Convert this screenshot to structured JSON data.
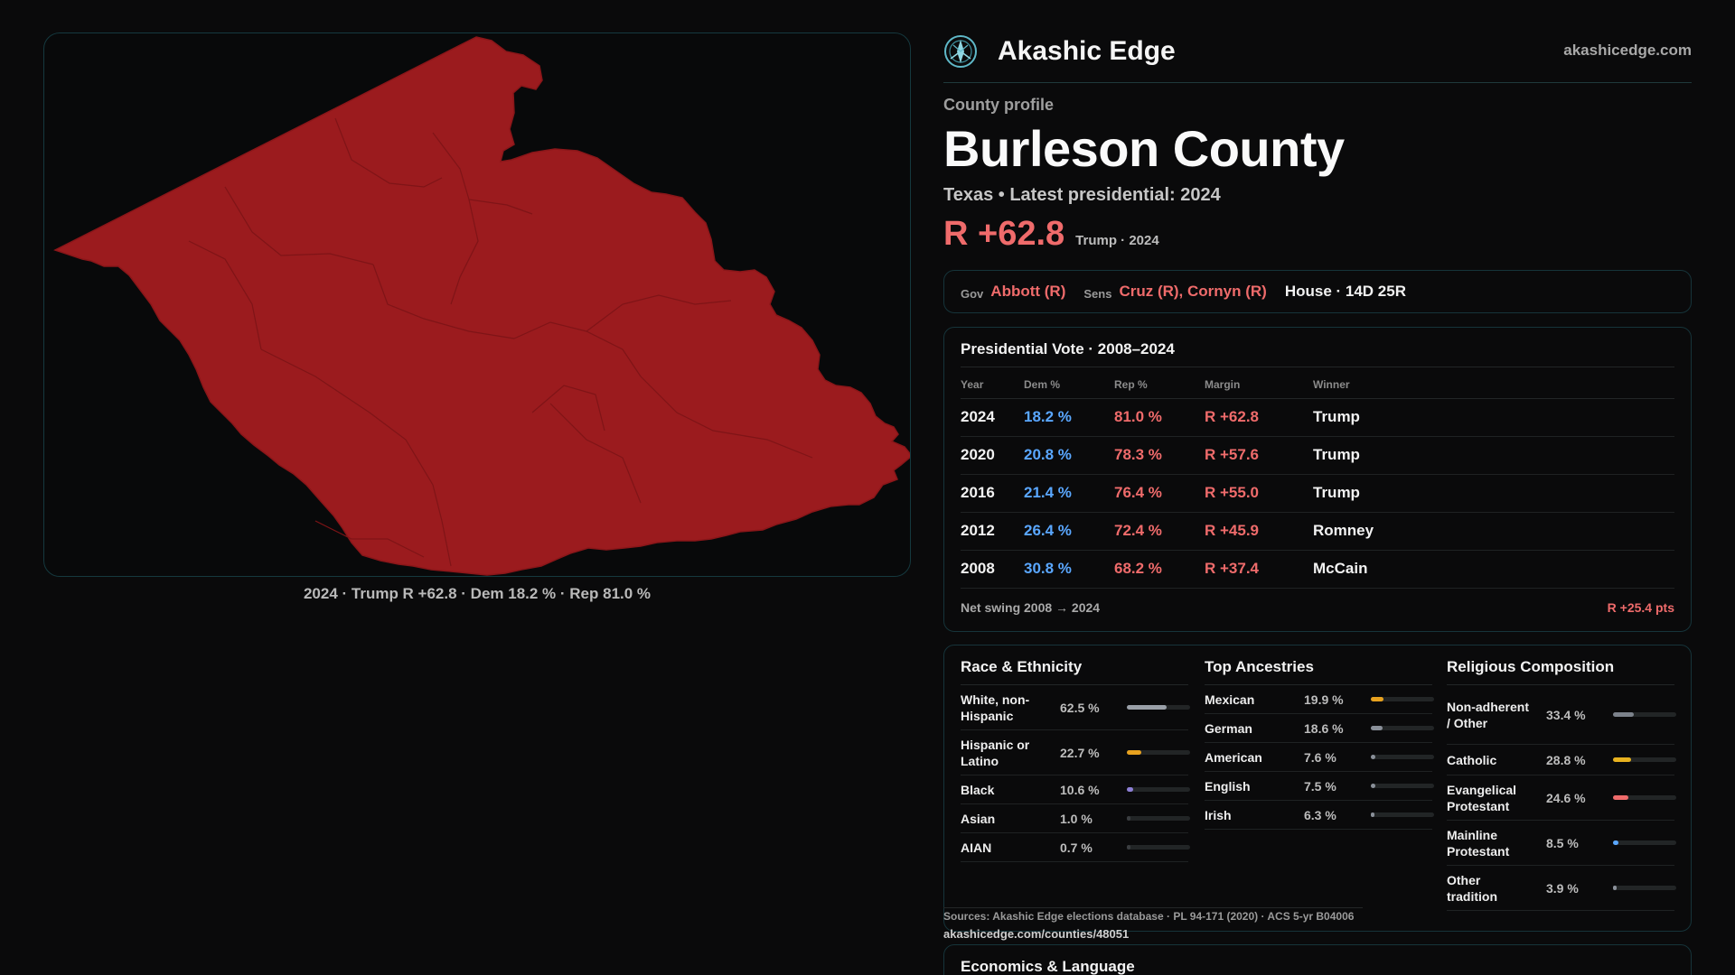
{
  "map": {
    "caption": "2024 · Trump R +62.8 · Dem 18.2 % · Rep 81.0 %",
    "fill_color": "#9b1b1e",
    "precinct_line_color": "#7f1417"
  },
  "brand": {
    "logo_icon": "compass-icon",
    "name": "Akashic Edge",
    "url": "akashicedge.com"
  },
  "profile": {
    "eyebrow": "County profile",
    "title": "Burleson County",
    "subline": "Texas • Latest presidential: 2024",
    "headline_margin": "R +62.8",
    "headline_note": "Trump · 2024"
  },
  "officials": {
    "gov_label": "Gov",
    "gov_value": "Abbott (R)",
    "sens_label": "Sens",
    "sens_value": "Cruz (R), Cornyn (R)",
    "house_value": "House · 14D 25R"
  },
  "presidential": {
    "title": "Presidential Vote · 2008–2024",
    "headers": [
      "Year",
      "Dem %",
      "Rep %",
      "Margin",
      "Winner"
    ],
    "rows": [
      {
        "year": "2024",
        "dem": "18.2 %",
        "rep": "81.0 %",
        "margin": "R +62.8",
        "winner": "Trump"
      },
      {
        "year": "2020",
        "dem": "20.8 %",
        "rep": "78.3 %",
        "margin": "R +57.6",
        "winner": "Trump"
      },
      {
        "year": "2016",
        "dem": "21.4 %",
        "rep": "76.4 %",
        "margin": "R +55.0",
        "winner": "Trump"
      },
      {
        "year": "2012",
        "dem": "26.4 %",
        "rep": "72.4 %",
        "margin": "R +45.9",
        "winner": "Romney"
      },
      {
        "year": "2008",
        "dem": "30.8 %",
        "rep": "68.2 %",
        "margin": "R +37.4",
        "winner": "McCain"
      }
    ],
    "swing_label": "Net swing 2008 → 2024",
    "swing_value": "R +25.4 pts"
  },
  "race": {
    "title": "Race & Ethnicity",
    "items": [
      {
        "label": "White, non-Hispanic",
        "pct": "62.5 %",
        "value": 62.5,
        "color": "#9aa0a8"
      },
      {
        "label": "Hispanic or Latino",
        "pct": "22.7 %",
        "value": 22.7,
        "color": "#e8a21f"
      },
      {
        "label": "Black",
        "pct": "10.6 %",
        "value": 10.6,
        "color": "#8d7fd6"
      },
      {
        "label": "Asian",
        "pct": "1.0 %",
        "value": 1.0,
        "color": "#3a3d40"
      },
      {
        "label": "AIAN",
        "pct": "0.7 %",
        "value": 0.7,
        "color": "#3a3d40"
      }
    ]
  },
  "ancestry": {
    "title": "Top Ancestries",
    "items": [
      {
        "label": "Mexican",
        "pct": "19.9 %",
        "value": 19.9,
        "color": "#e8a21f"
      },
      {
        "label": "German",
        "pct": "18.6 %",
        "value": 18.6,
        "color": "#8a9099"
      },
      {
        "label": "American",
        "pct": "7.6 %",
        "value": 7.6,
        "color": "#8a9099"
      },
      {
        "label": "English",
        "pct": "7.5 %",
        "value": 7.5,
        "color": "#8a9099"
      },
      {
        "label": "Irish",
        "pct": "6.3 %",
        "value": 6.3,
        "color": "#8a9099"
      }
    ]
  },
  "religion": {
    "title": "Religious Composition",
    "items": [
      {
        "label": "Non-adherent / Other",
        "pct": "33.4 %",
        "value": 33.4,
        "color": "#7c828b"
      },
      {
        "label": "Catholic",
        "pct": "28.8 %",
        "value": 28.8,
        "color": "#e8b21f"
      },
      {
        "label": "Evangelical Protestant",
        "pct": "24.6 %",
        "value": 24.6,
        "color": "#ef6b6b"
      },
      {
        "label": "Mainline Protestant",
        "pct": "8.5 %",
        "value": 8.5,
        "color": "#5aa7ff"
      },
      {
        "label": "Other tradition",
        "pct": "3.9 %",
        "value": 3.9,
        "color": "#8a9099"
      }
    ]
  },
  "sources": {
    "text": "Sources: Akashic Edge elections database · PL 94-171 (2020) · ACS 5-yr B04006",
    "url": "akashicedge.com/counties/48051"
  },
  "economics": {
    "title": "Economics & Language"
  }
}
